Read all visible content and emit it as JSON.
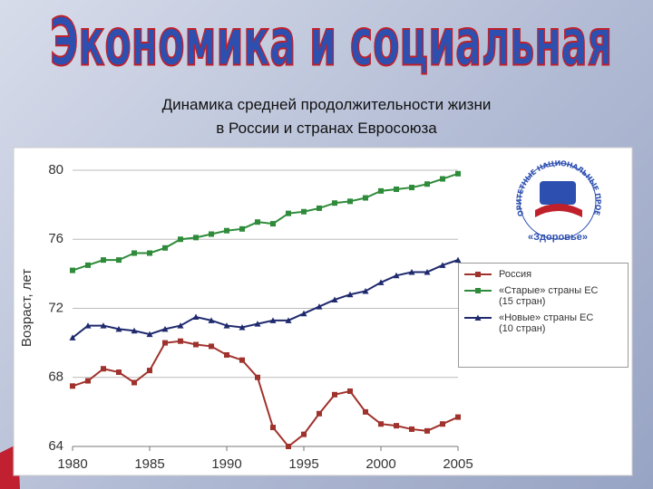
{
  "slide_heading": "Экономика и социальная",
  "logo": {
    "arc_text": "ПРИОРИТЕТНЫЕ НАЦИОНАЛЬНЫЕ ПРОЕКТЫ",
    "text": "«Здоровье»"
  },
  "chart_data": {
    "type": "line",
    "title": [
      "Динамика средней продолжительности жизни",
      "в России и странах Евросоюза"
    ],
    "y_label": "Возраст, лет",
    "x": [
      1980,
      1981,
      1982,
      1983,
      1984,
      1985,
      1986,
      1987,
      1988,
      1989,
      1990,
      1991,
      1992,
      1993,
      1994,
      1995,
      1996,
      1997,
      1998,
      1999,
      2000,
      2001,
      2002,
      2003,
      2004,
      2005
    ],
    "series": [
      {
        "name": "Россия",
        "color": "#a0322d",
        "marker": "square",
        "values": [
          67.5,
          67.8,
          68.5,
          68.3,
          67.7,
          68.4,
          70.0,
          70.1,
          69.9,
          69.8,
          69.3,
          69.0,
          68.0,
          65.1,
          64.0,
          64.7,
          65.9,
          67.0,
          67.2,
          66.0,
          65.3,
          65.2,
          65.0,
          64.9,
          65.3,
          65.7
        ]
      },
      {
        "name": "«Старые» страны ЕС (15 стран)",
        "color": "#2e8b3a",
        "marker": "square",
        "values": [
          74.2,
          74.5,
          74.8,
          74.8,
          75.2,
          75.2,
          75.5,
          76.0,
          76.1,
          76.3,
          76.5,
          76.6,
          77.0,
          76.9,
          77.5,
          77.6,
          77.8,
          78.1,
          78.2,
          78.4,
          78.8,
          78.9,
          79.0,
          79.2,
          79.5,
          79.8
        ]
      },
      {
        "name": "«Новые» страны ЕС (10 стран)",
        "color": "#1f2a6e",
        "marker": "triangle",
        "values": [
          70.3,
          71.0,
          71.0,
          70.8,
          70.7,
          70.5,
          70.8,
          71.0,
          71.5,
          71.3,
          71.0,
          70.9,
          71.1,
          71.3,
          71.3,
          71.7,
          72.1,
          72.5,
          72.8,
          73.0,
          73.5,
          73.9,
          74.1,
          74.1,
          74.5,
          74.8
        ]
      }
    ],
    "xlim": [
      1980,
      2005
    ],
    "xticks": [
      1980,
      1985,
      1990,
      1995,
      2000,
      2005
    ],
    "ylim": [
      64,
      80
    ],
    "yticks": [
      64,
      68,
      72,
      76,
      80
    ],
    "grid": true
  }
}
